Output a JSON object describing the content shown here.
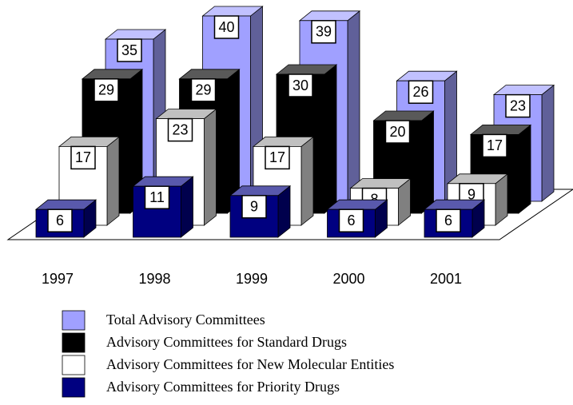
{
  "chart_data": {
    "type": "bar3d",
    "categories": [
      "1997",
      "1998",
      "1999",
      "2000",
      "2001"
    ],
    "series": [
      {
        "name": "Total Advisory Committees",
        "color": "#a0a0ff",
        "values": [
          35,
          40,
          39,
          26,
          23
        ]
      },
      {
        "name": "Advisory Committees for Standard Drugs",
        "color": "#000000",
        "values": [
          29,
          29,
          30,
          20,
          17
        ]
      },
      {
        "name": "Advisory Committees for New Molecular Entities",
        "color": "#ffffff",
        "values": [
          17,
          23,
          17,
          8,
          9
        ]
      },
      {
        "name": "Advisory Committees for Priority Drugs",
        "color": "#000080",
        "values": [
          6,
          11,
          9,
          6,
          6
        ]
      }
    ]
  }
}
